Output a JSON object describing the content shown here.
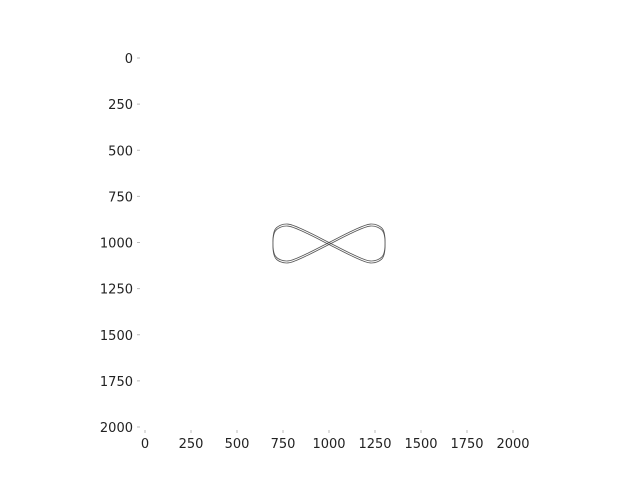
{
  "chart_data": {
    "type": "line",
    "title": "",
    "xlabel": "",
    "ylabel": "",
    "xlim": [
      0,
      2000
    ],
    "ylim": [
      2000,
      0
    ],
    "y_inverted": true,
    "grid": false,
    "x_ticks": [
      "0",
      "250",
      "500",
      "750",
      "1000",
      "1250",
      "1500",
      "1750",
      "2000"
    ],
    "y_ticks": [
      "0",
      "250",
      "500",
      "750",
      "1000",
      "1250",
      "1500",
      "1750",
      "2000"
    ],
    "colors": {
      "curve": "#555555",
      "text": "#222222",
      "ticks": "#bbbbbb"
    },
    "series": [
      {
        "shape": "figure-eight (lemniscate), double-traced outline",
        "x": [
          1000,
          1130,
          1225,
          1290,
          1305,
          1290,
          1225,
          1130,
          1000,
          870,
          775,
          710,
          695,
          710,
          775,
          870,
          1000
        ],
        "y": [
          1000,
          935,
          900,
          925,
          1000,
          1075,
          1100,
          1065,
          1000,
          935,
          900,
          925,
          1000,
          1075,
          1100,
          1065,
          1000
        ]
      }
    ]
  }
}
